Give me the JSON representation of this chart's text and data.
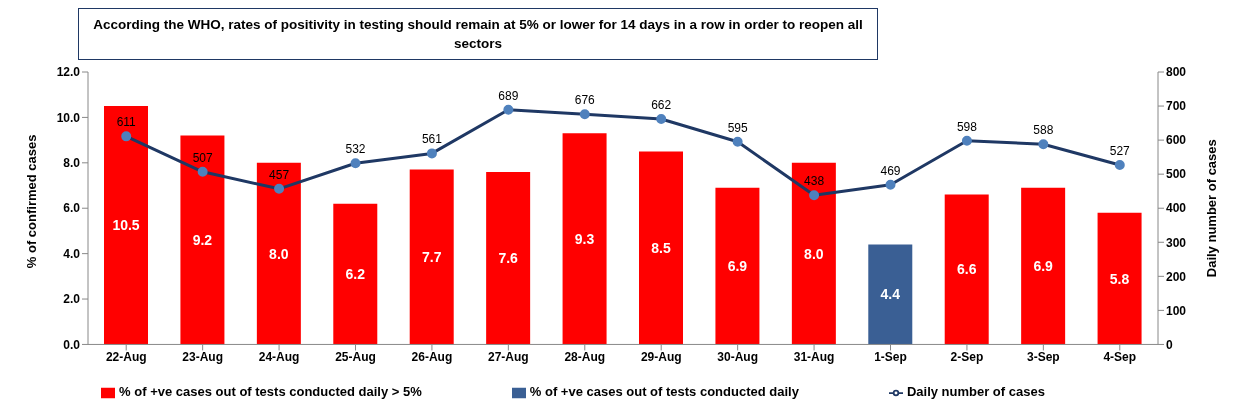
{
  "chart_data": {
    "type": "bar",
    "title": "According the WHO, rates of positivity in testing should remain at 5%  or lower for 14 days in a row in order to reopen all sectors",
    "categories": [
      "22-Aug",
      "23-Aug",
      "24-Aug",
      "25-Aug",
      "26-Aug",
      "27-Aug",
      "28-Aug",
      "29-Aug",
      "30-Aug",
      "31-Aug",
      "1-Sep",
      "2-Sep",
      "3-Sep",
      "4-Sep"
    ],
    "series": [
      {
        "name": "% of +ve cases out of tests conducted daily > 5%",
        "color": "#ff0000",
        "values": [
          10.5,
          9.2,
          8.0,
          6.2,
          7.7,
          7.6,
          9.3,
          8.5,
          6.9,
          8.0,
          null,
          6.6,
          6.9,
          5.8
        ],
        "value_labels": [
          "10.5",
          "9.2",
          "8.0",
          "6.2",
          "7.7",
          "7.6",
          "9.3",
          "8.5",
          "6.9",
          "8.0",
          null,
          "6.6",
          "6.9",
          "5.8"
        ]
      },
      {
        "name": "% of +ve cases out of tests conducted daily",
        "color": "#3a5f94",
        "values": [
          null,
          null,
          null,
          null,
          null,
          null,
          null,
          null,
          null,
          null,
          4.4,
          null,
          null,
          null
        ],
        "value_labels": [
          null,
          null,
          null,
          null,
          null,
          null,
          null,
          null,
          null,
          null,
          "4.4",
          null,
          null,
          null
        ]
      },
      {
        "name": "Daily  number of cases",
        "type": "line",
        "axis": "y2",
        "color": "#1f3864",
        "marker": "circle",
        "values": [
          611,
          507,
          457,
          532,
          561,
          689,
          676,
          662,
          595,
          438,
          469,
          598,
          588,
          527
        ]
      }
    ],
    "stacked": true,
    "ylabel": "% of confirmed cases",
    "y2label": "Daily number of cases",
    "ylim": [
      0,
      12
    ],
    "yticks": [
      {
        "value": 0,
        "label": "0.0"
      },
      {
        "value": 2,
        "label": "2.0"
      },
      {
        "value": 4,
        "label": "4.0"
      },
      {
        "value": 6,
        "label": "6.0"
      },
      {
        "value": 8,
        "label": "8.0"
      },
      {
        "value": 10,
        "label": "10.0"
      },
      {
        "value": 12,
        "label": "12.0"
      }
    ],
    "y2lim": [
      0,
      800
    ],
    "y2ticks": [
      0,
      100,
      200,
      300,
      400,
      500,
      600,
      700,
      800
    ],
    "data_labels": true,
    "legend": "bottom",
    "grid": false
  }
}
